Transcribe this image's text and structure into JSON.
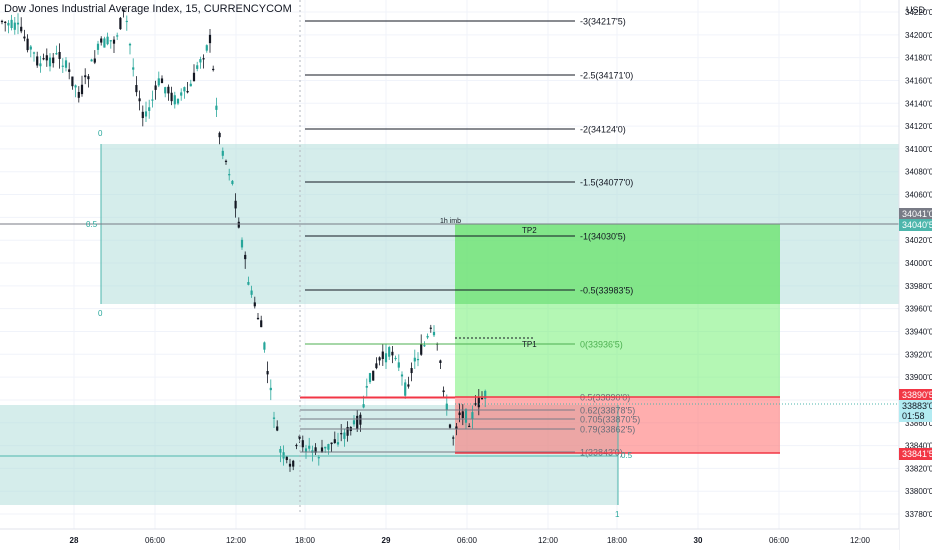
{
  "header": {
    "title": "Dow Jones Industrial Average Index, 15, CURRENCYCOM",
    "currency": "USD"
  },
  "price_axis": {
    "labels": [
      "34220'0",
      "34200'0",
      "34180'0",
      "34160'0",
      "34140'0",
      "34120'0",
      "34100'0",
      "34080'0",
      "34060'0",
      "34040'0",
      "34020'0",
      "34000'0",
      "33980'0",
      "33960'0",
      "33940'0",
      "33920'0",
      "33900'0",
      "33880'0",
      "33860'0",
      "33840'0",
      "33820'0",
      "33800'0",
      "33780'0"
    ],
    "tags": [
      {
        "text": "34041'0",
        "bg": "#787b86",
        "fg": "#ffffff"
      },
      {
        "text": "34040'5",
        "bg": "#4db6ac",
        "fg": "#ffffff"
      },
      {
        "text": "33890'5",
        "bg": "#f23645",
        "fg": "#ffffff"
      },
      {
        "text": "33883'0",
        "bg": "#b2ebf2",
        "fg": "#131722"
      },
      {
        "text": "01:58",
        "bg": "#b2ebf2",
        "fg": "#131722"
      },
      {
        "text": "33841'5",
        "bg": "#f23645",
        "fg": "#ffffff"
      }
    ]
  },
  "time_axis": {
    "labels": [
      "28",
      "06:00",
      "12:00",
      "18:00",
      "29",
      "06:00",
      "12:00",
      "18:00",
      "30",
      "06:00",
      "12:00"
    ],
    "bold": [
      "28",
      "29",
      "30"
    ]
  },
  "fib_levels": [
    {
      "label": "-3(34217'5)"
    },
    {
      "label": "-2.5(34171'0)"
    },
    {
      "label": "-2(34124'0)"
    },
    {
      "label": "-1.5(34077'0)"
    },
    {
      "label": "-1(34030'5)"
    },
    {
      "label": "-0.5(33983'5)"
    },
    {
      "label": "0(33936'5)"
    },
    {
      "label": "0.5(33890'0)"
    },
    {
      "label": "0.62(33878'5)"
    },
    {
      "label": "0.705(33870'5)"
    },
    {
      "label": "0.79(33862'5)"
    },
    {
      "label": "1(33843'0)"
    }
  ],
  "annotations": {
    "imb": "1h imb",
    "tp2": "TP2",
    "tp1": "TP1",
    "zone_upper_top": "0",
    "zone_upper_mid": "0.5",
    "zone_upper_bottom": "0",
    "zone_lower_mid": "0.5",
    "zone_lower_bottom": "1"
  },
  "colors": {
    "up": "#26a69a",
    "down": "#131722",
    "zone": "#b2dfdb",
    "tp": "#00e600",
    "sl": "#f23645",
    "fib_line": "#131722",
    "fib_green": "#4caf50",
    "fib_red": "#f23645",
    "grid": "#f0f3fa"
  }
}
